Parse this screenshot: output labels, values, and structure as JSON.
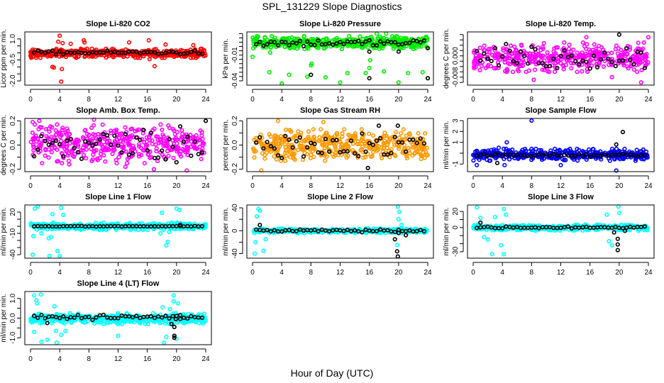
{
  "title": "SPL_131229  Slope Diagnostics",
  "xlabel": "Hour of Day (UTC)",
  "chart_data": [
    {
      "type": "scatter",
      "title": "Slope Li-820 CO2",
      "ylabel": "Licor ppm per min.",
      "color": "#ff0000",
      "xlim": [
        0,
        24
      ],
      "xticks": [
        0,
        4,
        8,
        12,
        16,
        20,
        24
      ],
      "ylim": [
        -2.3,
        1.5
      ],
      "yticks": [
        -2.0,
        -1.5,
        -1.0,
        -0.5,
        0.0,
        0.5,
        1.0
      ],
      "ytick_labels": {
        "-2.0": "-2.0",
        "-0.5": "-0.5",
        "1.0": "1.0"
      },
      "cloud_band": [
        -0.35,
        0.3
      ],
      "black_band": [
        -0.1,
        0.15
      ],
      "outliers": [
        [
          4,
          1.23
        ],
        [
          3,
          -1.0
        ],
        [
          3.2,
          -1.05
        ],
        [
          4.3,
          -1.15
        ],
        [
          4.2,
          -2.05
        ],
        [
          3.8,
          0.8
        ],
        [
          4.4,
          0.7
        ],
        [
          7.3,
          0.9
        ],
        [
          7.4,
          0.75
        ],
        [
          16.2,
          0.9
        ],
        [
          16.3,
          -0.45
        ],
        [
          17,
          -0.95
        ],
        [
          0,
          -0.2
        ],
        [
          13.5,
          0.75
        ],
        [
          18.5,
          0.6
        ],
        [
          22.3,
          0.55
        ],
        [
          5.5,
          0.65
        ]
      ],
      "black_outliers": []
    },
    {
      "type": "scatter",
      "title": "Slope Li-820 Pressure",
      "ylabel": "kPa per min.",
      "color": "#00ee00",
      "xlim": [
        0,
        24
      ],
      "xticks": [
        0,
        4,
        8,
        12,
        16,
        20,
        24
      ],
      "ylim": [
        -0.045,
        0.017
      ],
      "yticks": [
        -0.04,
        -0.035,
        -0.03,
        -0.025,
        -0.02,
        -0.015,
        -0.01,
        -0.005,
        0.0,
        0.005,
        0.01,
        0.015
      ],
      "ytick_labels": {
        "-0.04": "-0.04",
        "-0.01": "-0.01"
      },
      "cloud_band": [
        -0.003,
        0.012
      ],
      "black_band": [
        0.0,
        0.008
      ],
      "outliers": [
        [
          0,
          -0.012
        ],
        [
          0.1,
          -0.002
        ],
        [
          2.3,
          -0.03
        ],
        [
          2.4,
          -0.007
        ],
        [
          4,
          -0.043
        ],
        [
          5,
          -0.033
        ],
        [
          7.5,
          -0.035
        ],
        [
          8,
          -0.022
        ],
        [
          8.1,
          -0.02
        ],
        [
          10,
          -0.036
        ],
        [
          12,
          -0.042
        ],
        [
          13,
          -0.031
        ],
        [
          15.5,
          -0.031
        ],
        [
          16,
          -0.025
        ],
        [
          16.1,
          -0.016
        ],
        [
          18,
          -0.029
        ],
        [
          20,
          -0.042
        ],
        [
          21.3,
          -0.031
        ],
        [
          23.3,
          -0.03
        ],
        [
          24,
          -0.037
        ],
        [
          17,
          0.015
        ],
        [
          18.3,
          0.015
        ]
      ],
      "black_outliers": [
        [
          8,
          -0.033
        ],
        [
          16,
          -0.037
        ],
        [
          24,
          -0.037
        ],
        [
          16,
          -0.006
        ],
        [
          20,
          -0.006
        ],
        [
          24,
          -0.002
        ]
      ]
    },
    {
      "type": "scatter",
      "title": "Slope Li-820 Temp.",
      "ylabel": "degrees C per min.",
      "color": "#ff00ff",
      "xlim": [
        0,
        24
      ],
      "xticks": [
        0,
        4,
        8,
        12,
        16,
        20,
        24
      ],
      "ylim": [
        -0.011,
        0.009
      ],
      "yticks": [
        -0.01,
        -0.008,
        -0.006,
        -0.004,
        -0.002,
        0.0,
        0.002,
        0.004,
        0.006,
        0.008
      ],
      "ytick_labels": {
        "-0.008": "-0.008",
        "0.000": "0.000"
      },
      "cloud_band": [
        -0.006,
        0.005
      ],
      "black_band": [
        -0.005,
        0.004
      ],
      "outliers": [
        [
          8.3,
          -0.009
        ],
        [
          23,
          -0.01
        ],
        [
          19,
          -0.008
        ],
        [
          15.5,
          0.007
        ],
        [
          24,
          0.007
        ]
      ],
      "black_outliers": [
        [
          20,
          0.008
        ]
      ]
    },
    {
      "type": "scatter",
      "title": "Slope Amb. Box Temp.",
      "ylabel": "degrees C per min.",
      "color": "#ff00ff",
      "xlim": [
        0,
        24
      ],
      "xticks": [
        0,
        4,
        8,
        12,
        16,
        20,
        24
      ],
      "ylim": [
        -0.22,
        0.22
      ],
      "yticks": [
        -0.2,
        -0.1,
        0.0,
        0.1,
        0.2
      ],
      "ytick_labels": {
        "-0.2": "-0.2",
        "0.0": "0.0",
        "0.2": "0.2"
      },
      "cloud_band": [
        -0.15,
        0.17
      ],
      "black_band": [
        -0.14,
        0.15
      ],
      "outliers": [
        [
          0.3,
          0.19
        ],
        [
          1.2,
          0.2
        ],
        [
          8.7,
          0.21
        ],
        [
          13,
          -0.18
        ],
        [
          16.9,
          -0.2
        ],
        [
          21.4,
          -0.21
        ],
        [
          4.3,
          -0.15
        ],
        [
          5.3,
          -0.16
        ]
      ],
      "black_outliers": [
        [
          24,
          0.2
        ]
      ]
    },
    {
      "type": "scatter",
      "title": "Slope Gas Stream RH",
      "ylabel": "percent per min.",
      "color": "#ff9900",
      "xlim": [
        0,
        24
      ],
      "xticks": [
        0,
        4,
        8,
        12,
        16,
        20,
        24
      ],
      "ylim": [
        -0.22,
        0.22
      ],
      "yticks": [
        -0.2,
        -0.1,
        0.0,
        0.1,
        0.2
      ],
      "ytick_labels": {
        "-0.2": "-0.2",
        "0.0": "0.0",
        "0.2": "0.2"
      },
      "cloud_band": [
        -0.13,
        0.13
      ],
      "black_band": [
        -0.1,
        0.1
      ],
      "outliers": [
        [
          3.5,
          0.2
        ],
        [
          1.2,
          -0.21
        ],
        [
          9.7,
          0.19
        ],
        [
          15.8,
          -0.19
        ]
      ],
      "black_outliers": [
        [
          15.8,
          -0.19
        ],
        [
          17.3,
          0.16
        ],
        [
          19.9,
          0.16
        ]
      ]
    },
    {
      "type": "scatter",
      "title": "Slope Sample Flow",
      "ylabel": "ml/min per min.",
      "color": "#0000ff",
      "xlim": [
        0,
        24
      ],
      "xticks": [
        0,
        4,
        8,
        12,
        16,
        20,
        24
      ],
      "ylim": [
        -1.7,
        3.2
      ],
      "yticks": [
        -1,
        0,
        1,
        2,
        3
      ],
      "ytick_labels": {
        "-1": "-1",
        "1": "1",
        "2": "2",
        "3": "3"
      },
      "cloud_band": [
        -0.7,
        0.4
      ],
      "black_band": [
        -0.3,
        -0.05
      ],
      "outliers": [
        [
          8,
          3
        ],
        [
          19.6,
          -1.6
        ],
        [
          12,
          -1.1
        ],
        [
          4.3,
          -1.1
        ],
        [
          0.5,
          -1.1
        ],
        [
          4.6,
          1.0
        ],
        [
          3.5,
          0.5
        ]
      ],
      "black_outliers": [
        [
          20.5,
          1.95
        ],
        [
          19.6,
          0.8
        ],
        [
          3.3,
          -0.9
        ]
      ]
    },
    {
      "type": "scatter",
      "title": "Slope Line 1 Flow",
      "ylabel": "ml/min per min.",
      "color": "#00ffff",
      "xlim": [
        0,
        24
      ],
      "xticks": [
        0,
        4,
        8,
        12,
        16,
        20,
        24
      ],
      "ylim": [
        -45,
        30
      ],
      "yticks": [
        -40,
        -30,
        -20,
        -10,
        0,
        10,
        20
      ],
      "ytick_labels": {
        "-40": "-40",
        "-10": "-10",
        "20": "20"
      },
      "cloud_band": [
        -5,
        5
      ],
      "black_band": [
        -0.5,
        0.5
      ],
      "outliers": [
        [
          0.3,
          -40
        ],
        [
          0.6,
          25
        ],
        [
          1,
          28
        ],
        [
          3,
          17
        ],
        [
          4.2,
          26
        ],
        [
          4.5,
          16
        ],
        [
          2.5,
          -17
        ],
        [
          2.8,
          -15
        ],
        [
          3.7,
          -35
        ],
        [
          4,
          -42
        ],
        [
          2.6,
          -42
        ],
        [
          0.4,
          -14
        ],
        [
          1.5,
          -10
        ],
        [
          18,
          19
        ],
        [
          18.6,
          -27
        ],
        [
          18.8,
          -22
        ],
        [
          20,
          25
        ],
        [
          20.4,
          23
        ],
        [
          17.8,
          -10
        ],
        [
          19,
          -8
        ]
      ],
      "black_outliers": [
        [
          20.5,
          2
        ]
      ]
    },
    {
      "type": "scatter",
      "title": "Slope Line 2 Flow",
      "ylabel": "ml/min per min.",
      "color": "#00ffff",
      "xlim": [
        0,
        24
      ],
      "xticks": [
        0,
        4,
        8,
        12,
        16,
        20,
        24
      ],
      "ylim": [
        -48,
        45
      ],
      "yticks": [
        -40,
        -20,
        0,
        20,
        40
      ],
      "ytick_labels": {
        "-40": "-40",
        "0": "0",
        "40": "40"
      },
      "cloud_band": [
        -4,
        4
      ],
      "black_band": [
        -2,
        2
      ],
      "outliers": [
        [
          0.3,
          -40
        ],
        [
          0.8,
          38
        ],
        [
          1,
          35
        ],
        [
          0.6,
          25
        ],
        [
          0.4,
          -20
        ],
        [
          1.5,
          -35
        ],
        [
          1.8,
          -15
        ],
        [
          19.9,
          42
        ],
        [
          20.1,
          33
        ],
        [
          20,
          20
        ],
        [
          19.8,
          -25
        ],
        [
          20.4,
          10
        ]
      ],
      "black_outliers": [
        [
          19.5,
          -15
        ],
        [
          19.8,
          -36
        ],
        [
          19.9,
          -45
        ],
        [
          20,
          -4
        ],
        [
          21,
          -8
        ],
        [
          1,
          10
        ]
      ]
    },
    {
      "type": "scatter",
      "title": "Slope Line 3 Flow",
      "ylabel": "ml/min per min.",
      "color": "#00ffff",
      "xlim": [
        0,
        24
      ],
      "xticks": [
        0,
        4,
        8,
        12,
        16,
        20,
        24
      ],
      "ylim": [
        -38,
        28
      ],
      "yticks": [
        -30,
        -20,
        -10,
        0,
        10,
        20
      ],
      "ytick_labels": {
        "-30": "-30",
        "0": "0",
        "20": "20"
      },
      "cloud_band": [
        -4,
        4
      ],
      "black_band": [
        -1,
        1.5
      ],
      "outliers": [
        [
          0.5,
          25
        ],
        [
          2.6,
          -33
        ],
        [
          4.2,
          -33
        ],
        [
          4.2,
          23
        ],
        [
          4.5,
          16
        ],
        [
          3.8,
          -22
        ],
        [
          1.5,
          -12
        ],
        [
          2,
          -15
        ],
        [
          18.3,
          16
        ],
        [
          18.6,
          -17
        ],
        [
          19,
          -22
        ],
        [
          19.9,
          26
        ],
        [
          20,
          18
        ],
        [
          1,
          12
        ],
        [
          3,
          13
        ]
      ],
      "black_outliers": [
        [
          19.8,
          -14
        ],
        [
          19.8,
          -21
        ],
        [
          19.8,
          -28
        ],
        [
          19.3,
          -6
        ],
        [
          20.8,
          -4
        ],
        [
          1,
          6
        ]
      ]
    },
    {
      "type": "scatter",
      "title": "Slope Line 4 (LT) Flow",
      "ylabel": "ml/min per min.",
      "color": "#00ffff",
      "xlim": [
        0,
        24
      ],
      "xticks": [
        0,
        4,
        8,
        12,
        16,
        20,
        24
      ],
      "ylim": [
        -1.35,
        1.35
      ],
      "yticks": [
        -1.0,
        -0.5,
        0.0,
        0.5,
        1.0
      ],
      "ytick_labels": {
        "-1.0": "-1.0",
        "0.0": "0.0",
        "1.0": "1.0"
      },
      "cloud_band": [
        -0.3,
        0.25
      ],
      "black_band": [
        -0.05,
        0.15
      ],
      "outliers": [
        [
          0.5,
          1.15
        ],
        [
          1.4,
          1.2
        ],
        [
          0.8,
          0.9
        ],
        [
          0.9,
          0.75
        ],
        [
          0.5,
          -0.7
        ],
        [
          1.5,
          -1.2
        ],
        [
          2.3,
          -1.1
        ],
        [
          3.6,
          -1.25
        ],
        [
          3.3,
          0.6
        ],
        [
          3.5,
          -0.65
        ],
        [
          12,
          -0.9
        ],
        [
          18.3,
          -1.25
        ],
        [
          18.6,
          -0.95
        ],
        [
          19.6,
          1.15
        ],
        [
          19.6,
          0.85
        ],
        [
          20.2,
          0.75
        ],
        [
          18.1,
          0.55
        ],
        [
          19.1,
          0.45
        ],
        [
          20,
          -1.05
        ],
        [
          4.2,
          -0.85
        ],
        [
          4.8,
          -0.65
        ]
      ],
      "black_outliers": [
        [
          2.3,
          -0.25
        ],
        [
          19.3,
          -0.3
        ],
        [
          19.7,
          -0.45
        ],
        [
          19.7,
          -0.9
        ],
        [
          19.7,
          -1.0
        ],
        [
          19.9,
          -0.05
        ],
        [
          20.5,
          0.15
        ]
      ]
    }
  ]
}
